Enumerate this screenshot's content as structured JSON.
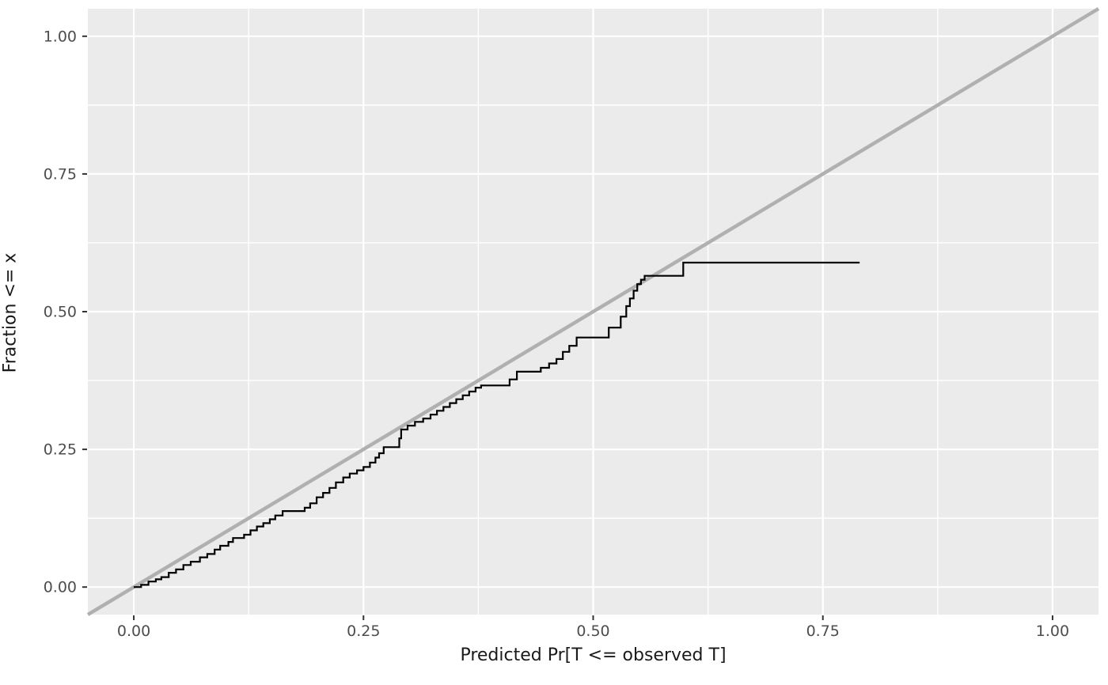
{
  "chart_data": {
    "type": "line",
    "title": "",
    "xlabel": "Predicted Pr[T <= observed T]",
    "ylabel": "Fraction <= x",
    "xlim": [
      -0.05,
      1.05
    ],
    "ylim": [
      -0.05,
      1.05
    ],
    "grid": true,
    "legend": "none",
    "x_ticks": {
      "values": [
        0.0,
        0.25,
        0.5,
        0.75,
        1.0
      ],
      "labels": [
        "0.00",
        "0.25",
        "0.50",
        "0.75",
        "1.00"
      ]
    },
    "y_ticks": {
      "values": [
        0.0,
        0.25,
        0.5,
        0.75,
        1.0
      ],
      "labels": [
        "0.00",
        "0.25",
        "0.50",
        "0.75",
        "1.00"
      ]
    },
    "x_minor_ticks": [
      0.125,
      0.375,
      0.625,
      0.875
    ],
    "y_minor_ticks": [
      0.125,
      0.375,
      0.625,
      0.875
    ],
    "series": [
      {
        "name": "reference-diagonal",
        "kind": "abline",
        "intercept": 0,
        "slope": 1,
        "color": "#b0b0b0",
        "width": 4.5
      },
      {
        "name": "ecdf-step",
        "kind": "step",
        "color": "#000000",
        "width": 2.2,
        "start": [
          0.0,
          0.0
        ],
        "jumps": [
          [
            0.008,
            0.004
          ],
          [
            0.016,
            0.01
          ],
          [
            0.024,
            0.014
          ],
          [
            0.03,
            0.018
          ],
          [
            0.038,
            0.026
          ],
          [
            0.046,
            0.032
          ],
          [
            0.054,
            0.04
          ],
          [
            0.062,
            0.046
          ],
          [
            0.072,
            0.054
          ],
          [
            0.08,
            0.06
          ],
          [
            0.088,
            0.068
          ],
          [
            0.094,
            0.075
          ],
          [
            0.103,
            0.082
          ],
          [
            0.108,
            0.089
          ],
          [
            0.12,
            0.095
          ],
          [
            0.127,
            0.103
          ],
          [
            0.134,
            0.11
          ],
          [
            0.141,
            0.116
          ],
          [
            0.148,
            0.123
          ],
          [
            0.154,
            0.13
          ],
          [
            0.162,
            0.138
          ],
          [
            0.186,
            0.144
          ],
          [
            0.192,
            0.152
          ],
          [
            0.199,
            0.163
          ],
          [
            0.206,
            0.171
          ],
          [
            0.213,
            0.18
          ],
          [
            0.22,
            0.19
          ],
          [
            0.228,
            0.199
          ],
          [
            0.235,
            0.206
          ],
          [
            0.243,
            0.212
          ],
          [
            0.25,
            0.218
          ],
          [
            0.257,
            0.226
          ],
          [
            0.263,
            0.235
          ],
          [
            0.267,
            0.243
          ],
          [
            0.272,
            0.254
          ],
          [
            0.289,
            0.27
          ],
          [
            0.291,
            0.286
          ],
          [
            0.298,
            0.293
          ],
          [
            0.306,
            0.3
          ],
          [
            0.315,
            0.306
          ],
          [
            0.323,
            0.313
          ],
          [
            0.33,
            0.32
          ],
          [
            0.337,
            0.327
          ],
          [
            0.344,
            0.334
          ],
          [
            0.351,
            0.341
          ],
          [
            0.358,
            0.348
          ],
          [
            0.365,
            0.355
          ],
          [
            0.372,
            0.362
          ],
          [
            0.378,
            0.366
          ],
          [
            0.409,
            0.377
          ],
          [
            0.417,
            0.391
          ],
          [
            0.443,
            0.398
          ],
          [
            0.452,
            0.406
          ],
          [
            0.46,
            0.414
          ],
          [
            0.467,
            0.427
          ],
          [
            0.474,
            0.438
          ],
          [
            0.482,
            0.453
          ],
          [
            0.517,
            0.471
          ],
          [
            0.53,
            0.491
          ],
          [
            0.536,
            0.51
          ],
          [
            0.54,
            0.524
          ],
          [
            0.544,
            0.538
          ],
          [
            0.548,
            0.55
          ],
          [
            0.552,
            0.558
          ],
          [
            0.556,
            0.565
          ],
          [
            0.598,
            0.589
          ]
        ],
        "end_x": 0.79
      }
    ],
    "style": {
      "panel_bg": "#ebebeb",
      "grid_major_color": "#ffffff",
      "grid_minor_color": "#ffffff",
      "grid_major_width": 2.2,
      "grid_minor_width": 1.4,
      "tick_mark_color": "#333333",
      "tick_label_color": "#4d4d4d",
      "tick_label_size": 19,
      "axis_title_color": "#1a1a1a"
    }
  }
}
